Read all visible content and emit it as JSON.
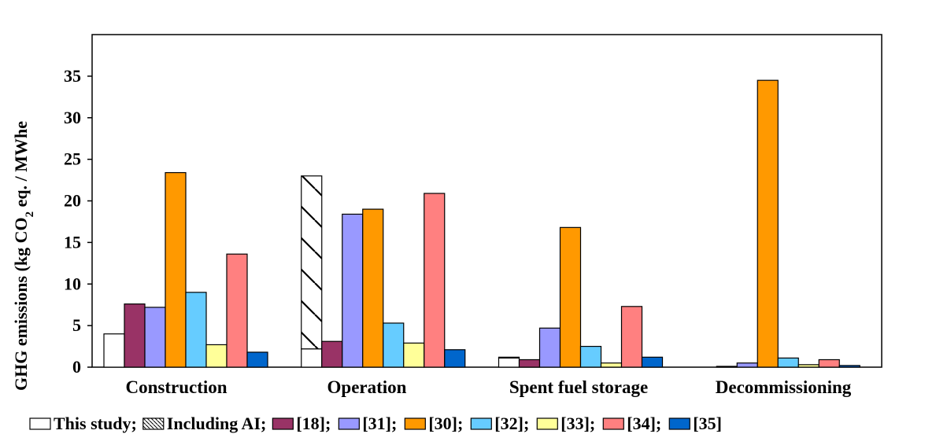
{
  "chart_data": {
    "type": "bar",
    "title": "",
    "xlabel": "",
    "ylabel": {
      "main": "GHG emissions  (kg CO",
      "subscript": "2",
      "suffix": " eq. / MWhe"
    },
    "ylim": [
      0,
      40
    ],
    "yticks": [
      0,
      5,
      10,
      15,
      20,
      25,
      30,
      35
    ],
    "tick_labels": [
      "0",
      "5",
      "10",
      "15",
      "20",
      "25",
      "30",
      "35"
    ],
    "grid": false,
    "legend_position": "bottom",
    "categories": [
      "Construction",
      "Operation",
      "Spent fuel storage",
      "Decommissioning"
    ],
    "series": [
      {
        "name": "This study;",
        "color": "#ffffff",
        "pattern": "none",
        "values": [
          4.0,
          2.2,
          1.1,
          0.0
        ]
      },
      {
        "name": "Including AI;",
        "color": "#ffffff",
        "pattern": "hatch",
        "values": [
          0.0,
          20.8,
          0.1,
          0.0
        ]
      },
      {
        "name": "[18];",
        "color": "#993366",
        "pattern": "none",
        "values": [
          7.6,
          3.1,
          0.9,
          0.1
        ]
      },
      {
        "name": "[31];",
        "color": "#9999ff",
        "pattern": "none",
        "values": [
          7.2,
          18.4,
          4.7,
          0.5
        ]
      },
      {
        "name": "[30];",
        "color": "#ff9900",
        "pattern": "none",
        "values": [
          23.4,
          19.0,
          16.8,
          34.5
        ]
      },
      {
        "name": "[32];",
        "color": "#66ccff",
        "pattern": "none",
        "values": [
          9.0,
          5.3,
          2.5,
          1.1
        ]
      },
      {
        "name": "[33];",
        "color": "#ffff99",
        "pattern": "none",
        "values": [
          2.7,
          2.9,
          0.5,
          0.3
        ]
      },
      {
        "name": "[34];",
        "color": "#ff8080",
        "pattern": "none",
        "values": [
          13.6,
          20.9,
          7.3,
          0.9
        ]
      },
      {
        "name": "[35]",
        "color": "#0066cc",
        "pattern": "none",
        "values": [
          1.8,
          2.1,
          1.2,
          0.2
        ]
      }
    ]
  }
}
